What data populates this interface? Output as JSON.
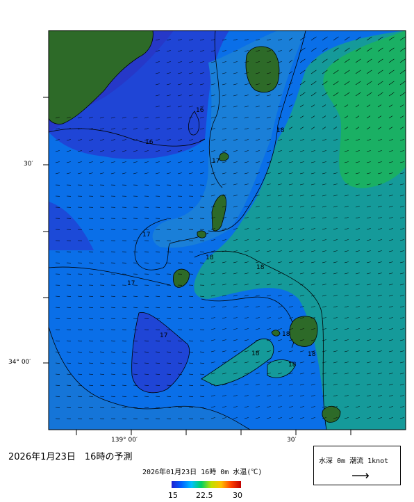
{
  "map": {
    "land_color": "#2d6a28",
    "isotherm_labels": [
      "16",
      "16",
      "17",
      "17",
      "17",
      "17",
      "18",
      "18",
      "18",
      "18",
      "18",
      "18",
      "18"
    ],
    "axis_ticks": {
      "lat_top": "30′",
      "lat_bottom": "34° 00′",
      "lon_left": "139° 00′",
      "lon_right": "30′"
    }
  },
  "title": "2026年1月23日　16時の予測",
  "caption": "2026年01月23日 16時 0m 水温(℃)",
  "color_scale": {
    "min_label": "15",
    "mid_label": "22.5",
    "max_label": "30",
    "colors": [
      "#2020d0",
      "#0060ff",
      "#00c0ff",
      "#00d060",
      "#c0e000",
      "#ffc000",
      "#ff4000",
      "#c00000"
    ]
  },
  "legend": {
    "text": "水深 0m 潮流 1knot",
    "arrow_icon": "arrow-right-icon"
  }
}
